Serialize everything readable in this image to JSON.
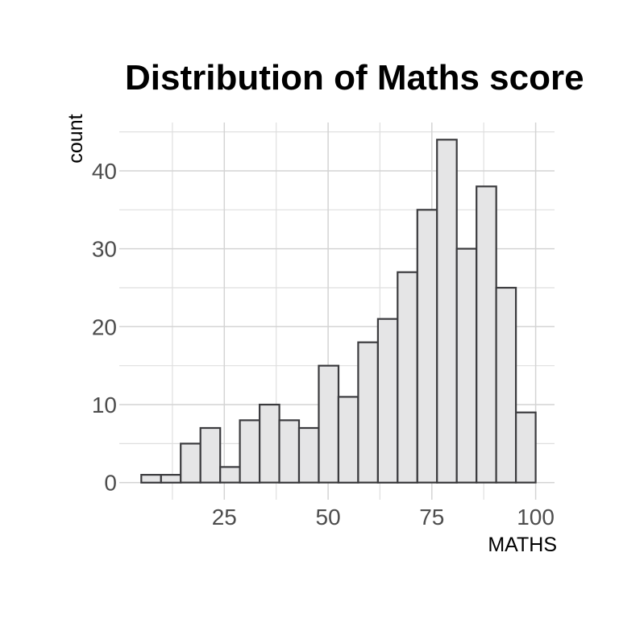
{
  "chart_data": {
    "type": "bar",
    "subtype": "histogram",
    "title": "Distribution of Maths score",
    "xlabel": "MATHS",
    "ylabel": "count",
    "bin_start": 5,
    "bin_width": 4.75,
    "bin_count": 20,
    "values": [
      1,
      1,
      5,
      7,
      2,
      8,
      10,
      8,
      7,
      15,
      11,
      18,
      21,
      27,
      35,
      44,
      30,
      38,
      25,
      9
    ],
    "x_tick_labels": [
      "25",
      "50",
      "75",
      "100"
    ],
    "x_major_ticks": [
      25,
      50,
      75,
      100
    ],
    "x_minor_gridlines": [
      12.5,
      37.5,
      62.5,
      87.5
    ],
    "y_tick_labels": [
      "0",
      "10",
      "20",
      "30",
      "40"
    ],
    "y_major_ticks": [
      0,
      10,
      20,
      30,
      40
    ],
    "y_minor_gridlines": [
      5,
      15,
      25,
      35,
      45
    ],
    "xlim": [
      -0.3,
      104.55
    ],
    "ylim": [
      -2.2,
      46.2
    ],
    "grid": true,
    "legend_position": "none",
    "colors": {
      "background": "#FFFFFF",
      "bar_fill": "#E5E5E6",
      "bar_stroke": "#3B3B3E",
      "grid_major": "#D4D4D4",
      "grid_minor": "#DFDFDF",
      "tick_text": "#4D4D4D",
      "title_text": "#000000"
    }
  }
}
